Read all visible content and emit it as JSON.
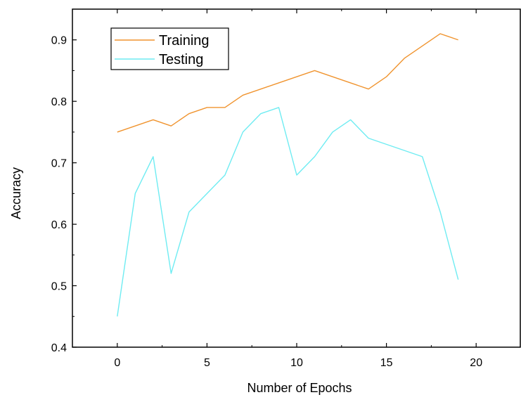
{
  "chart_data": {
    "type": "line",
    "title": "",
    "xlabel": "Number of Epochs",
    "ylabel": "Accuracy",
    "xlim": [
      -2.5,
      22.5
    ],
    "ylim": [
      0.4,
      0.95
    ],
    "xticks": [
      0,
      5,
      10,
      15,
      20
    ],
    "yticks": [
      0.4,
      0.5,
      0.6,
      0.7,
      0.8,
      0.9
    ],
    "grid": false,
    "legend_position": "top-left",
    "series": [
      {
        "name": "Training",
        "color": "#f0942f",
        "x": [
          0,
          1,
          2,
          3,
          4,
          5,
          6,
          7,
          8,
          9,
          10,
          11,
          12,
          13,
          14,
          15,
          16,
          17,
          18,
          19
        ],
        "values": [
          0.75,
          0.76,
          0.77,
          0.76,
          0.78,
          0.79,
          0.79,
          0.81,
          0.82,
          0.83,
          0.84,
          0.85,
          0.84,
          0.83,
          0.82,
          0.84,
          0.87,
          0.89,
          0.91,
          0.9
        ]
      },
      {
        "name": "Testing",
        "color": "#6fecf2",
        "x": [
          0,
          1,
          2,
          3,
          4,
          5,
          6,
          7,
          8,
          9,
          10,
          11,
          12,
          13,
          14,
          15,
          16,
          17,
          18,
          19
        ],
        "values": [
          0.45,
          0.65,
          0.71,
          0.52,
          0.62,
          0.65,
          0.68,
          0.75,
          0.78,
          0.79,
          0.68,
          0.71,
          0.75,
          0.77,
          0.74,
          0.73,
          0.72,
          0.71,
          0.62,
          0.51
        ]
      }
    ]
  }
}
